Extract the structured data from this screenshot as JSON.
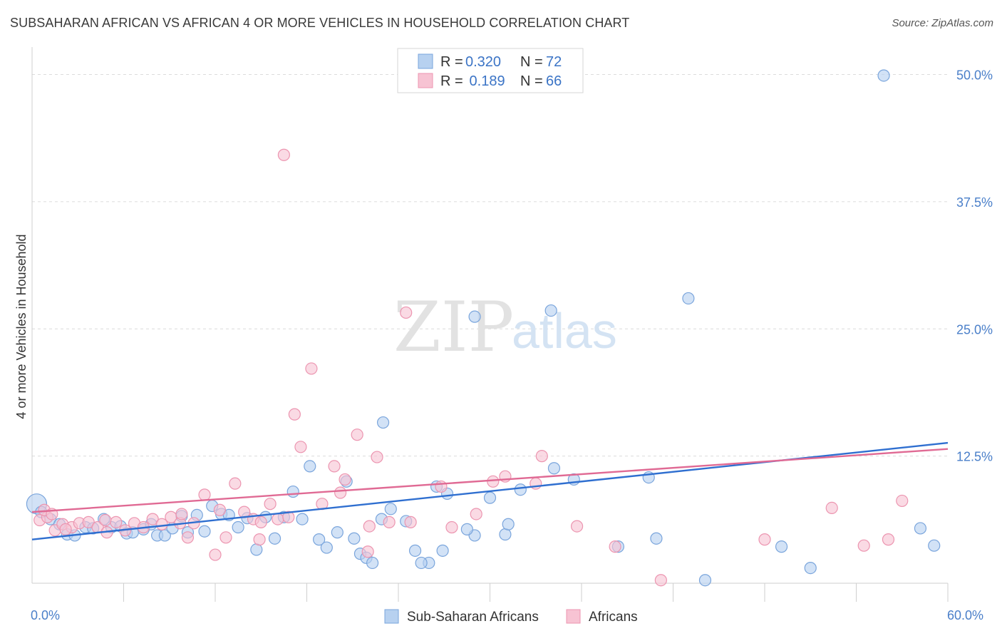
{
  "header": {
    "title": "SUBSAHARAN AFRICAN VS AFRICAN 4 OR MORE VEHICLES IN HOUSEHOLD CORRELATION CHART",
    "source": "Source: ZipAtlas.com"
  },
  "watermark": {
    "zip": "ZIP",
    "atlas": "atlas"
  },
  "colors": {
    "blue_fill": "#b7d1f0",
    "blue_stroke": "#7aa5dc",
    "blue_line": "#2f6fd0",
    "pink_fill": "#f7c3d3",
    "pink_stroke": "#ec95b0",
    "pink_line": "#e06a94",
    "overlap_fill": "#c9a7cc",
    "overlap_stroke": "#a984b3",
    "grid": "#dcdcdc",
    "tick_text": "#4a7fc9"
  },
  "legend": {
    "rows": [
      {
        "r_label": "R =",
        "r_value": "0.320",
        "n_label": "N =",
        "n_value": "72"
      },
      {
        "r_label": "R =",
        "r_value": " 0.189",
        "n_label": "N =",
        "n_value": "66"
      }
    ]
  },
  "chart_data": {
    "type": "scatter",
    "title": "SUBSAHARAN AFRICAN VS AFRICAN 4 OR MORE VEHICLES IN HOUSEHOLD CORRELATION CHART",
    "xlabel": "",
    "ylabel": "4 or more Vehicles in Household",
    "xlim": [
      0,
      60
    ],
    "ylim": [
      0,
      52
    ],
    "x_tick_labels": [
      {
        "value": 0,
        "label": "0.0%"
      },
      {
        "value": 60,
        "label": "60.0%"
      }
    ],
    "y_tick_labels": [
      {
        "value": 12.5,
        "label": "12.5%"
      },
      {
        "value": 25,
        "label": "25.0%"
      },
      {
        "value": 37.5,
        "label": "37.5%"
      },
      {
        "value": 50,
        "label": "50.0%"
      }
    ],
    "x_minor_ticks": [
      6,
      12,
      18,
      24,
      30,
      36,
      42,
      48,
      54,
      60
    ],
    "series": [
      {
        "name": "Sub-Saharan Africans",
        "color": "#b7d1f0",
        "trend": {
          "x": [
            0,
            60
          ],
          "y": [
            4.3,
            13.8
          ]
        },
        "points": [
          [
            0.3,
            7.8
          ],
          [
            0.6,
            7.0
          ],
          [
            1.2,
            6.3
          ],
          [
            1.8,
            5.8
          ],
          [
            2.3,
            4.8
          ],
          [
            2.8,
            4.7
          ],
          [
            3.5,
            5.5
          ],
          [
            4.0,
            5.4
          ],
          [
            4.7,
            6.3
          ],
          [
            5.2,
            5.5
          ],
          [
            5.8,
            5.6
          ],
          [
            6.2,
            4.9
          ],
          [
            6.6,
            5.0
          ],
          [
            7.3,
            5.3
          ],
          [
            7.8,
            5.8
          ],
          [
            8.2,
            4.7
          ],
          [
            8.7,
            4.7
          ],
          [
            9.2,
            5.4
          ],
          [
            9.8,
            6.6
          ],
          [
            10.2,
            5.0
          ],
          [
            10.8,
            6.7
          ],
          [
            11.3,
            5.1
          ],
          [
            11.8,
            7.6
          ],
          [
            12.4,
            6.8
          ],
          [
            12.9,
            6.7
          ],
          [
            13.5,
            5.5
          ],
          [
            14.1,
            6.4
          ],
          [
            14.7,
            3.3
          ],
          [
            15.3,
            6.5
          ],
          [
            15.9,
            4.4
          ],
          [
            16.5,
            6.5
          ],
          [
            17.1,
            9.0
          ],
          [
            17.7,
            6.3
          ],
          [
            18.2,
            11.5
          ],
          [
            18.8,
            4.3
          ],
          [
            19.3,
            3.5
          ],
          [
            20.0,
            5.0
          ],
          [
            20.6,
            10.0
          ],
          [
            21.1,
            4.4
          ],
          [
            21.5,
            2.9
          ],
          [
            21.9,
            2.5
          ],
          [
            22.3,
            2.0
          ],
          [
            22.9,
            6.3
          ],
          [
            23.5,
            7.3
          ],
          [
            23.0,
            15.8
          ],
          [
            24.5,
            6.1
          ],
          [
            26.5,
            9.5
          ],
          [
            29.0,
            4.7
          ],
          [
            30.0,
            8.4
          ],
          [
            31.0,
            4.8
          ],
          [
            32.0,
            9.2
          ],
          [
            34.2,
            11.3
          ],
          [
            35.5,
            10.2
          ],
          [
            40.4,
            10.4
          ],
          [
            34.0,
            26.8
          ],
          [
            29.0,
            26.2
          ],
          [
            43.0,
            28.0
          ],
          [
            40.9,
            4.4
          ],
          [
            38.4,
            3.6
          ],
          [
            49.1,
            3.6
          ],
          [
            51.0,
            1.5
          ],
          [
            58.2,
            5.4
          ],
          [
            59.1,
            3.7
          ],
          [
            44.1,
            0.3
          ],
          [
            31.2,
            5.8
          ],
          [
            28.5,
            5.3
          ],
          [
            27.2,
            8.8
          ],
          [
            26.0,
            2.0
          ],
          [
            25.1,
            3.2
          ],
          [
            26.9,
            3.2
          ],
          [
            25.5,
            2.0
          ],
          [
            55.8,
            49.9
          ]
        ]
      },
      {
        "name": "Africans",
        "color": "#f7c3d3",
        "trend": {
          "x": [
            0,
            60
          ],
          "y": [
            7.0,
            13.2
          ]
        },
        "points": [
          [
            0.5,
            6.2
          ],
          [
            1.0,
            6.5
          ],
          [
            1.5,
            5.2
          ],
          [
            2.0,
            5.8
          ],
          [
            2.6,
            5.5
          ],
          [
            3.1,
            5.9
          ],
          [
            3.7,
            6.0
          ],
          [
            4.3,
            5.5
          ],
          [
            4.9,
            5.0
          ],
          [
            5.5,
            6.0
          ],
          [
            6.1,
            5.2
          ],
          [
            6.7,
            5.9
          ],
          [
            7.3,
            5.5
          ],
          [
            7.9,
            6.3
          ],
          [
            8.5,
            5.8
          ],
          [
            9.1,
            6.5
          ],
          [
            9.7,
            5.9
          ],
          [
            10.2,
            4.5
          ],
          [
            10.6,
            5.9
          ],
          [
            11.3,
            8.7
          ],
          [
            12.0,
            2.8
          ],
          [
            12.7,
            4.5
          ],
          [
            13.3,
            9.8
          ],
          [
            13.9,
            7.0
          ],
          [
            14.5,
            6.3
          ],
          [
            15.0,
            6.0
          ],
          [
            15.6,
            7.8
          ],
          [
            16.1,
            6.3
          ],
          [
            16.8,
            6.5
          ],
          [
            17.2,
            16.6
          ],
          [
            17.6,
            13.4
          ],
          [
            18.3,
            21.1
          ],
          [
            19.0,
            7.8
          ],
          [
            19.8,
            11.5
          ],
          [
            20.5,
            10.2
          ],
          [
            21.3,
            14.6
          ],
          [
            22.1,
            5.6
          ],
          [
            22.6,
            12.4
          ],
          [
            23.4,
            6.0
          ],
          [
            24.5,
            26.6
          ],
          [
            16.5,
            42.1
          ],
          [
            22.0,
            3.1
          ],
          [
            24.8,
            6.0
          ],
          [
            27.5,
            5.5
          ],
          [
            29.1,
            6.8
          ],
          [
            31.0,
            10.5
          ],
          [
            33.4,
            12.5
          ],
          [
            35.7,
            5.6
          ],
          [
            38.2,
            3.6
          ],
          [
            41.2,
            0.3
          ],
          [
            48.0,
            4.3
          ],
          [
            52.4,
            7.4
          ],
          [
            54.5,
            3.7
          ],
          [
            56.1,
            4.3
          ],
          [
            57.0,
            8.1
          ],
          [
            0.8,
            7.2
          ],
          [
            1.3,
            6.8
          ],
          [
            2.2,
            5.3
          ],
          [
            4.8,
            6.2
          ],
          [
            9.8,
            6.8
          ],
          [
            12.3,
            7.2
          ],
          [
            14.9,
            4.3
          ],
          [
            20.2,
            8.9
          ],
          [
            26.8,
            9.5
          ],
          [
            30.2,
            10.0
          ],
          [
            33.0,
            9.8
          ]
        ]
      }
    ],
    "legend_labels": [
      "Sub-Saharan Africans",
      "Africans"
    ]
  }
}
